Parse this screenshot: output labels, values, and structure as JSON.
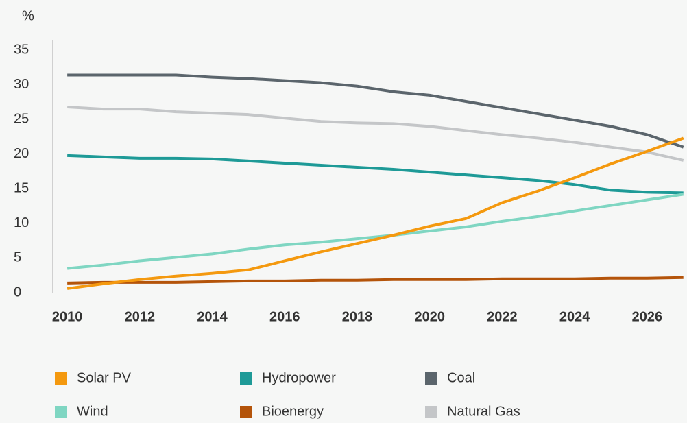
{
  "chart_data": {
    "type": "line",
    "y_label": "%",
    "x": [
      2010,
      2011,
      2012,
      2013,
      2014,
      2015,
      2016,
      2017,
      2018,
      2019,
      2020,
      2021,
      2022,
      2023,
      2024,
      2025,
      2026,
      2027
    ],
    "xlim": [
      2009.6,
      2027.1
    ],
    "xticks": [
      2010,
      2012,
      2014,
      2016,
      2018,
      2020,
      2022,
      2024,
      2026
    ],
    "ylim": [
      0,
      36.5
    ],
    "yticks": [
      0,
      5,
      10,
      15,
      20,
      25,
      30,
      35
    ],
    "series": [
      {
        "name": "Solar PV",
        "color": "#f4990f",
        "values": [
          0.6,
          1.3,
          1.9,
          2.4,
          2.8,
          3.3,
          4.6,
          5.9,
          7.1,
          8.3,
          9.6,
          10.7,
          13.0,
          14.7,
          16.6,
          18.6,
          20.4,
          22.3
        ]
      },
      {
        "name": "Hydropower",
        "color": "#1e9a97",
        "values": [
          19.8,
          19.6,
          19.4,
          19.4,
          19.3,
          19.0,
          18.7,
          18.4,
          18.1,
          17.8,
          17.4,
          17.0,
          16.6,
          16.2,
          15.6,
          14.8,
          14.5,
          14.4
        ]
      },
      {
        "name": "Coal",
        "color": "#5b656c",
        "values": [
          31.4,
          31.4,
          31.4,
          31.4,
          31.1,
          30.9,
          30.6,
          30.3,
          29.8,
          29.0,
          28.5,
          27.6,
          26.7,
          25.8,
          24.9,
          24.0,
          22.8,
          21.0
        ]
      },
      {
        "name": "Wind",
        "color": "#7fd6c2",
        "values": [
          3.5,
          4.0,
          4.6,
          5.1,
          5.6,
          6.3,
          6.9,
          7.3,
          7.8,
          8.3,
          8.9,
          9.5,
          10.3,
          11.0,
          11.8,
          12.6,
          13.4,
          14.2
        ]
      },
      {
        "name": "Bioenergy",
        "color": "#b4540a",
        "values": [
          1.4,
          1.5,
          1.5,
          1.5,
          1.6,
          1.7,
          1.7,
          1.8,
          1.8,
          1.9,
          1.9,
          1.9,
          2.0,
          2.0,
          2.0,
          2.1,
          2.1,
          2.2
        ]
      },
      {
        "name": "Natural Gas",
        "color": "#c4c6c8",
        "values": [
          26.8,
          26.5,
          26.5,
          26.1,
          25.9,
          25.7,
          25.2,
          24.7,
          24.5,
          24.4,
          24.0,
          23.4,
          22.8,
          22.3,
          21.7,
          21.0,
          20.3,
          19.1
        ]
      }
    ]
  }
}
